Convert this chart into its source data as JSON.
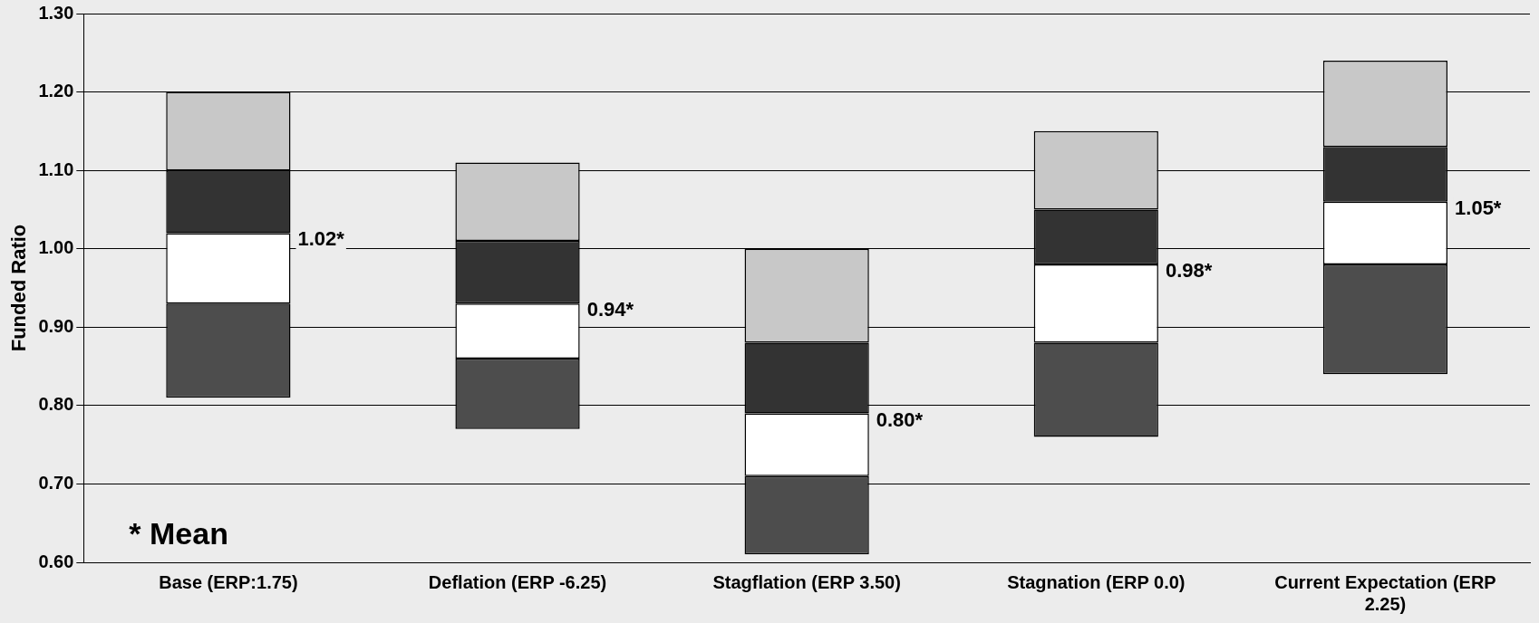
{
  "chart_data": {
    "type": "bar",
    "stacked": true,
    "ylabel": "Funded Ratio",
    "categories": [
      "Base (ERP:1.75)",
      "Deflation (ERP -6.25)",
      "Stagflation (ERP 3.50)",
      "Stagnation (ERP 0.0)",
      "Current Expectation (ERP 2.25)"
    ],
    "series": [
      {
        "color": "#4d4d4d",
        "base": [
          0.81,
          0.77,
          0.61,
          0.76,
          0.84
        ],
        "values": [
          0.12,
          0.09,
          0.1,
          0.12,
          0.14
        ]
      },
      {
        "color": "#ffffff",
        "base": [
          0.93,
          0.86,
          0.71,
          0.88,
          0.98
        ],
        "values": [
          0.09,
          0.07,
          0.08,
          0.1,
          0.08
        ]
      },
      {
        "color": "#333333",
        "base": [
          1.02,
          0.93,
          0.79,
          0.98,
          1.06
        ],
        "values": [
          0.08,
          0.08,
          0.09,
          0.07,
          0.07
        ]
      },
      {
        "color": "#c8c8c8",
        "base": [
          1.1,
          1.01,
          0.88,
          1.05,
          1.13
        ],
        "values": [
          0.1,
          0.1,
          0.12,
          0.1,
          0.11
        ]
      }
    ],
    "ylim": [
      0.6,
      1.3
    ],
    "yticks": [
      {
        "value": 0.6,
        "label": "0.60"
      },
      {
        "value": 0.7,
        "label": "0.70"
      },
      {
        "value": 0.8,
        "label": "0.80"
      },
      {
        "value": 0.9,
        "label": "0.90"
      },
      {
        "value": 1.0,
        "label": "1.00"
      },
      {
        "value": 1.1,
        "label": "1.10"
      },
      {
        "value": 1.2,
        "label": "1.20"
      },
      {
        "value": 1.3,
        "label": "1.30"
      }
    ],
    "grid": "y",
    "legend": false,
    "annotations": [
      "1.02*",
      "0.94*",
      "0.80*",
      "0.98*",
      "1.05*",
      "* Mean"
    ]
  }
}
